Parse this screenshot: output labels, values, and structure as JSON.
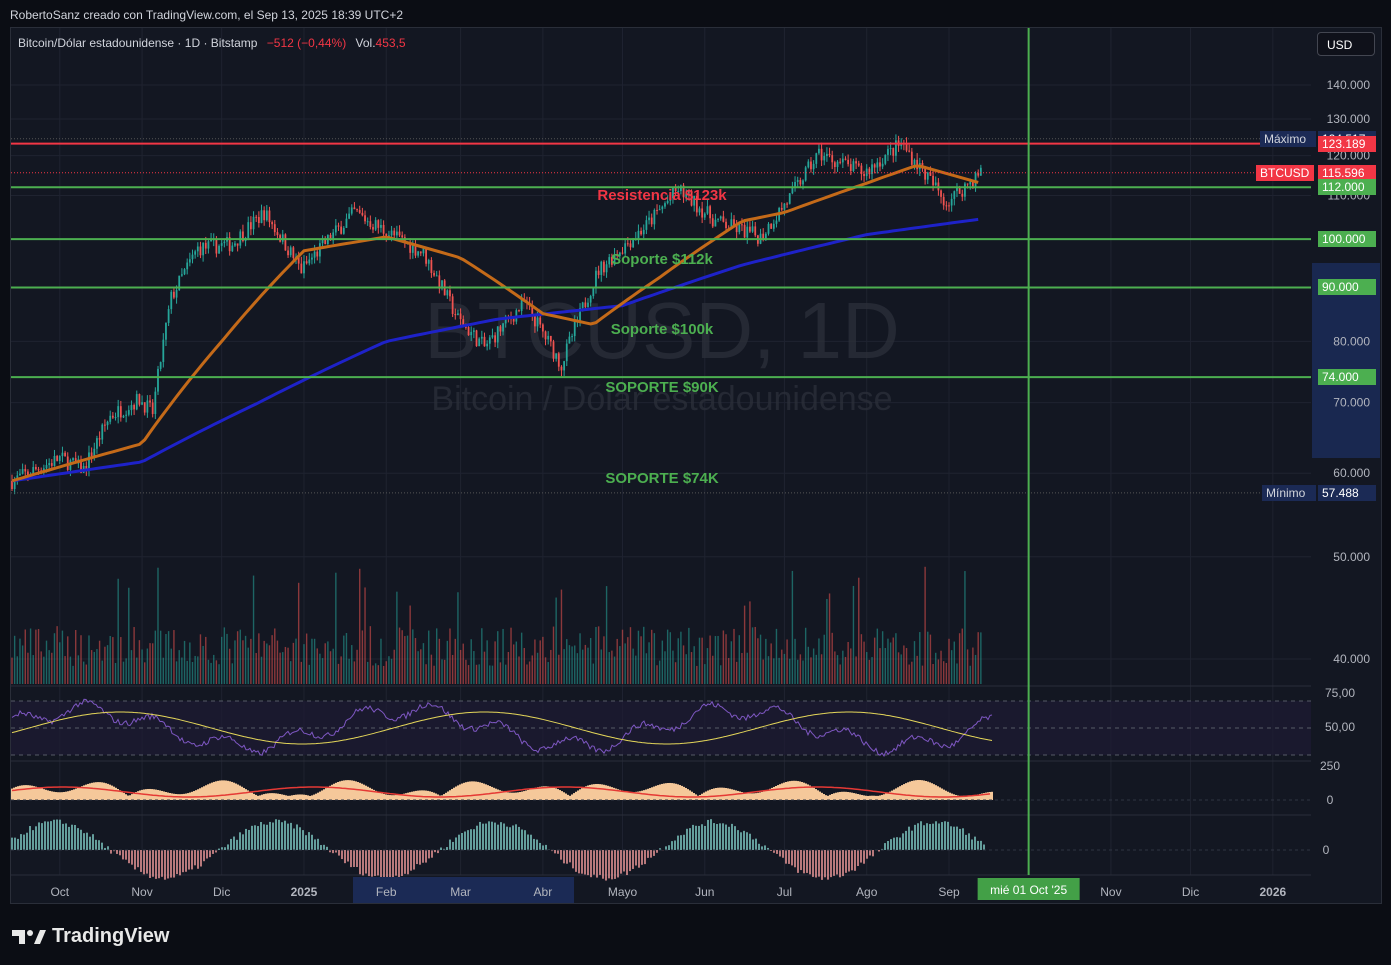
{
  "header": {
    "credit": "RobertoSanz creado con TradingView.com, el Sep 13, 2025 18:39 UTC+2",
    "symbol_title": "Bitcoin/Dólar estadounidense · 1D · Bitstamp",
    "change": "−512 (−0,44%)",
    "volume_label": "Vol.",
    "volume_value": "453,5",
    "currency_button": "USD"
  },
  "watermark": {
    "line1": "BTCUSD, 1D",
    "line2": "Bitcoin / Dólar estadounidense"
  },
  "price_axis": {
    "labels": [
      "140.000",
      "130.000",
      "120.000",
      "110.000",
      "100.000",
      "90.000",
      "80.000",
      "70.000",
      "60.000",
      "50.000",
      "40.000"
    ],
    "max_label": "Máximo",
    "max_value": "124.517",
    "min_label": "Mínimo",
    "min_value": "57.488",
    "resistance_value": "123.189",
    "symbol_tag": "BTCUSD",
    "last_price": "115.596",
    "support_values": [
      "112.000",
      "100.000",
      "90.000",
      "74.000"
    ]
  },
  "rsi_axis": {
    "labels": [
      "75,00",
      "50,00"
    ]
  },
  "mid_axis": {
    "labels": [
      "250",
      "0"
    ]
  },
  "low_axis": {
    "labels": [
      "0"
    ]
  },
  "time_axis": {
    "labels": [
      "Oct",
      "Nov",
      "Dic",
      "2025",
      "Feb",
      "Mar",
      "Abr",
      "Mayo",
      "Jun",
      "Jul",
      "Ago",
      "Sep",
      "Nov",
      "Dic",
      "2026"
    ],
    "highlight": "mié 01 Oct '25"
  },
  "annotations": {
    "resistance": "Resistencia $123k",
    "s112": "Soporte $112k",
    "s100": "Soporte $100k",
    "s90": "SOPORTE $90K",
    "s74": "SOPORTE $74K"
  },
  "colors": {
    "up": "#26a69a",
    "down": "#ef5350",
    "ma50": "#c46a19",
    "ma200": "#1e22c9",
    "support": "#4caf50",
    "resistance": "#f23645",
    "rsi": "#7e57c2",
    "rsi_ma": "#e5d75a"
  },
  "footer": {
    "brand": "TradingView",
    "logo_icon": "tradingview-logo-icon"
  },
  "chart_data": {
    "type": "line",
    "series_kind": "candlestick (approximate daily closes)",
    "x_range": [
      "2024-09-13",
      "2026-01-15"
    ],
    "ylim": [
      35000,
      147000
    ],
    "log_scale": true,
    "cursor_date": "2025-10-01",
    "close_points": [
      [
        "2024-09-13",
        59000
      ],
      [
        "2024-10-01",
        62000
      ],
      [
        "2024-10-10",
        60500
      ],
      [
        "2024-10-20",
        68000
      ],
      [
        "2024-10-31",
        70500
      ],
      [
        "2024-11-05",
        68500
      ],
      [
        "2024-11-12",
        88000
      ],
      [
        "2024-11-22",
        98000
      ],
      [
        "2024-12-05",
        99000
      ],
      [
        "2024-12-17",
        106000
      ],
      [
        "2024-12-31",
        93500
      ],
      [
        "2025-01-20",
        106000
      ],
      [
        "2025-01-31",
        102000
      ],
      [
        "2025-02-15",
        97000
      ],
      [
        "2025-02-28",
        84000
      ],
      [
        "2025-03-10",
        79000
      ],
      [
        "2025-03-25",
        87000
      ],
      [
        "2025-04-08",
        76000
      ],
      [
        "2025-04-22",
        93500
      ],
      [
        "2025-05-10",
        103000
      ],
      [
        "2025-05-22",
        111500
      ],
      [
        "2025-06-05",
        104000
      ],
      [
        "2025-06-22",
        100500
      ],
      [
        "2025-07-03",
        109500
      ],
      [
        "2025-07-14",
        120500
      ],
      [
        "2025-07-31",
        115500
      ],
      [
        "2025-08-14",
        123200
      ],
      [
        "2025-08-31",
        108300
      ],
      [
        "2025-09-13",
        115596
      ]
    ],
    "ma50_points": [
      [
        "2024-09-13",
        59000
      ],
      [
        "2024-11-01",
        64000
      ],
      [
        "2024-12-01",
        80000
      ],
      [
        "2025-01-01",
        97500
      ],
      [
        "2025-02-01",
        100500
      ],
      [
        "2025-03-01",
        96000
      ],
      [
        "2025-04-01",
        85000
      ],
      [
        "2025-04-20",
        83000
      ],
      [
        "2025-05-15",
        92000
      ],
      [
        "2025-06-15",
        104000
      ],
      [
        "2025-07-01",
        106000
      ],
      [
        "2025-08-01",
        113000
      ],
      [
        "2025-08-20",
        117500
      ],
      [
        "2025-09-13",
        113000
      ]
    ],
    "ma200_points": [
      [
        "2024-09-13",
        59000
      ],
      [
        "2024-11-01",
        61500
      ],
      [
        "2024-12-15",
        70000
      ],
      [
        "2025-02-01",
        80000
      ],
      [
        "2025-03-15",
        84000
      ],
      [
        "2025-05-01",
        86500
      ],
      [
        "2025-06-15",
        94500
      ],
      [
        "2025-08-01",
        101000
      ],
      [
        "2025-09-13",
        104500
      ]
    ],
    "horizontal_levels": [
      {
        "label": "Resistencia $123k",
        "value": 123189
      },
      {
        "label": "Soporte $112k",
        "value": 112000
      },
      {
        "label": "Soporte $100k",
        "value": 100000
      },
      {
        "label": "SOPORTE $90K",
        "value": 90000
      },
      {
        "label": "SOPORTE $74K",
        "value": 74000
      }
    ],
    "max": 124517,
    "min": 57488,
    "last": 115596
  }
}
